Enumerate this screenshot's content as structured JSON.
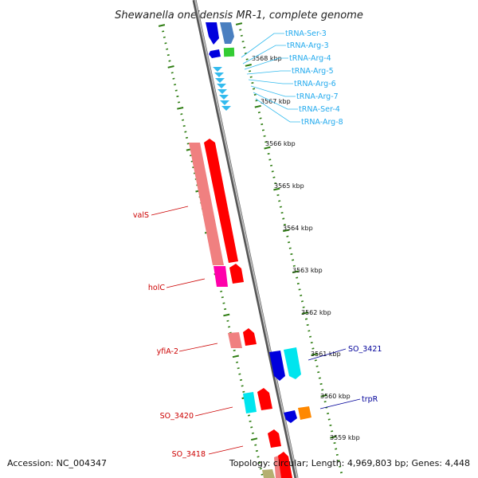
{
  "title": "Shewanella oneidensis MR-1, complete genome",
  "footer": {
    "accession": "Accession: NC_004347",
    "topology": "Topology: circular; Length: 4,969,803 bp; Genes: 4,448"
  },
  "colors": {
    "backbone": "#7a7a7a",
    "ticks": "#2e7d12",
    "forward_gene": "#ff0000",
    "forward_gene_light": "#f08080",
    "reverse_gene": "#0000dd",
    "reverse_gene_light": "#4a7fc0",
    "trna": "#33bbee",
    "rrna": "#ff00aa",
    "cyan_gene": "#00e5ee",
    "orange_gene": "#ff8800",
    "green_gene": "#33cc33",
    "label_forward": "#cc0000",
    "label_reverse": "#000099",
    "label_trna": "#22aaee"
  },
  "kbp_labels": [
    "3568 kbp",
    "3567 kbp",
    "3566 kbp",
    "3565 kbp",
    "3564 kbp",
    "3563 kbp",
    "3562 kbp",
    "3561 kbp",
    "3560 kbp",
    "3559 kbp"
  ],
  "trna_labels": [
    "tRNA-Ser-3",
    "tRNA-Arg-3",
    "tRNA-Arg-4",
    "tRNA-Arg-5",
    "tRNA-Arg-6",
    "tRNA-Arg-7",
    "tRNA-Ser-4",
    "tRNA-Arg-8"
  ],
  "left_gene_labels": [
    "valS",
    "holC",
    "yfiA-2",
    "SO_3420",
    "SO_3418"
  ],
  "right_gene_labels": [
    "SO_3421",
    "trpR"
  ]
}
